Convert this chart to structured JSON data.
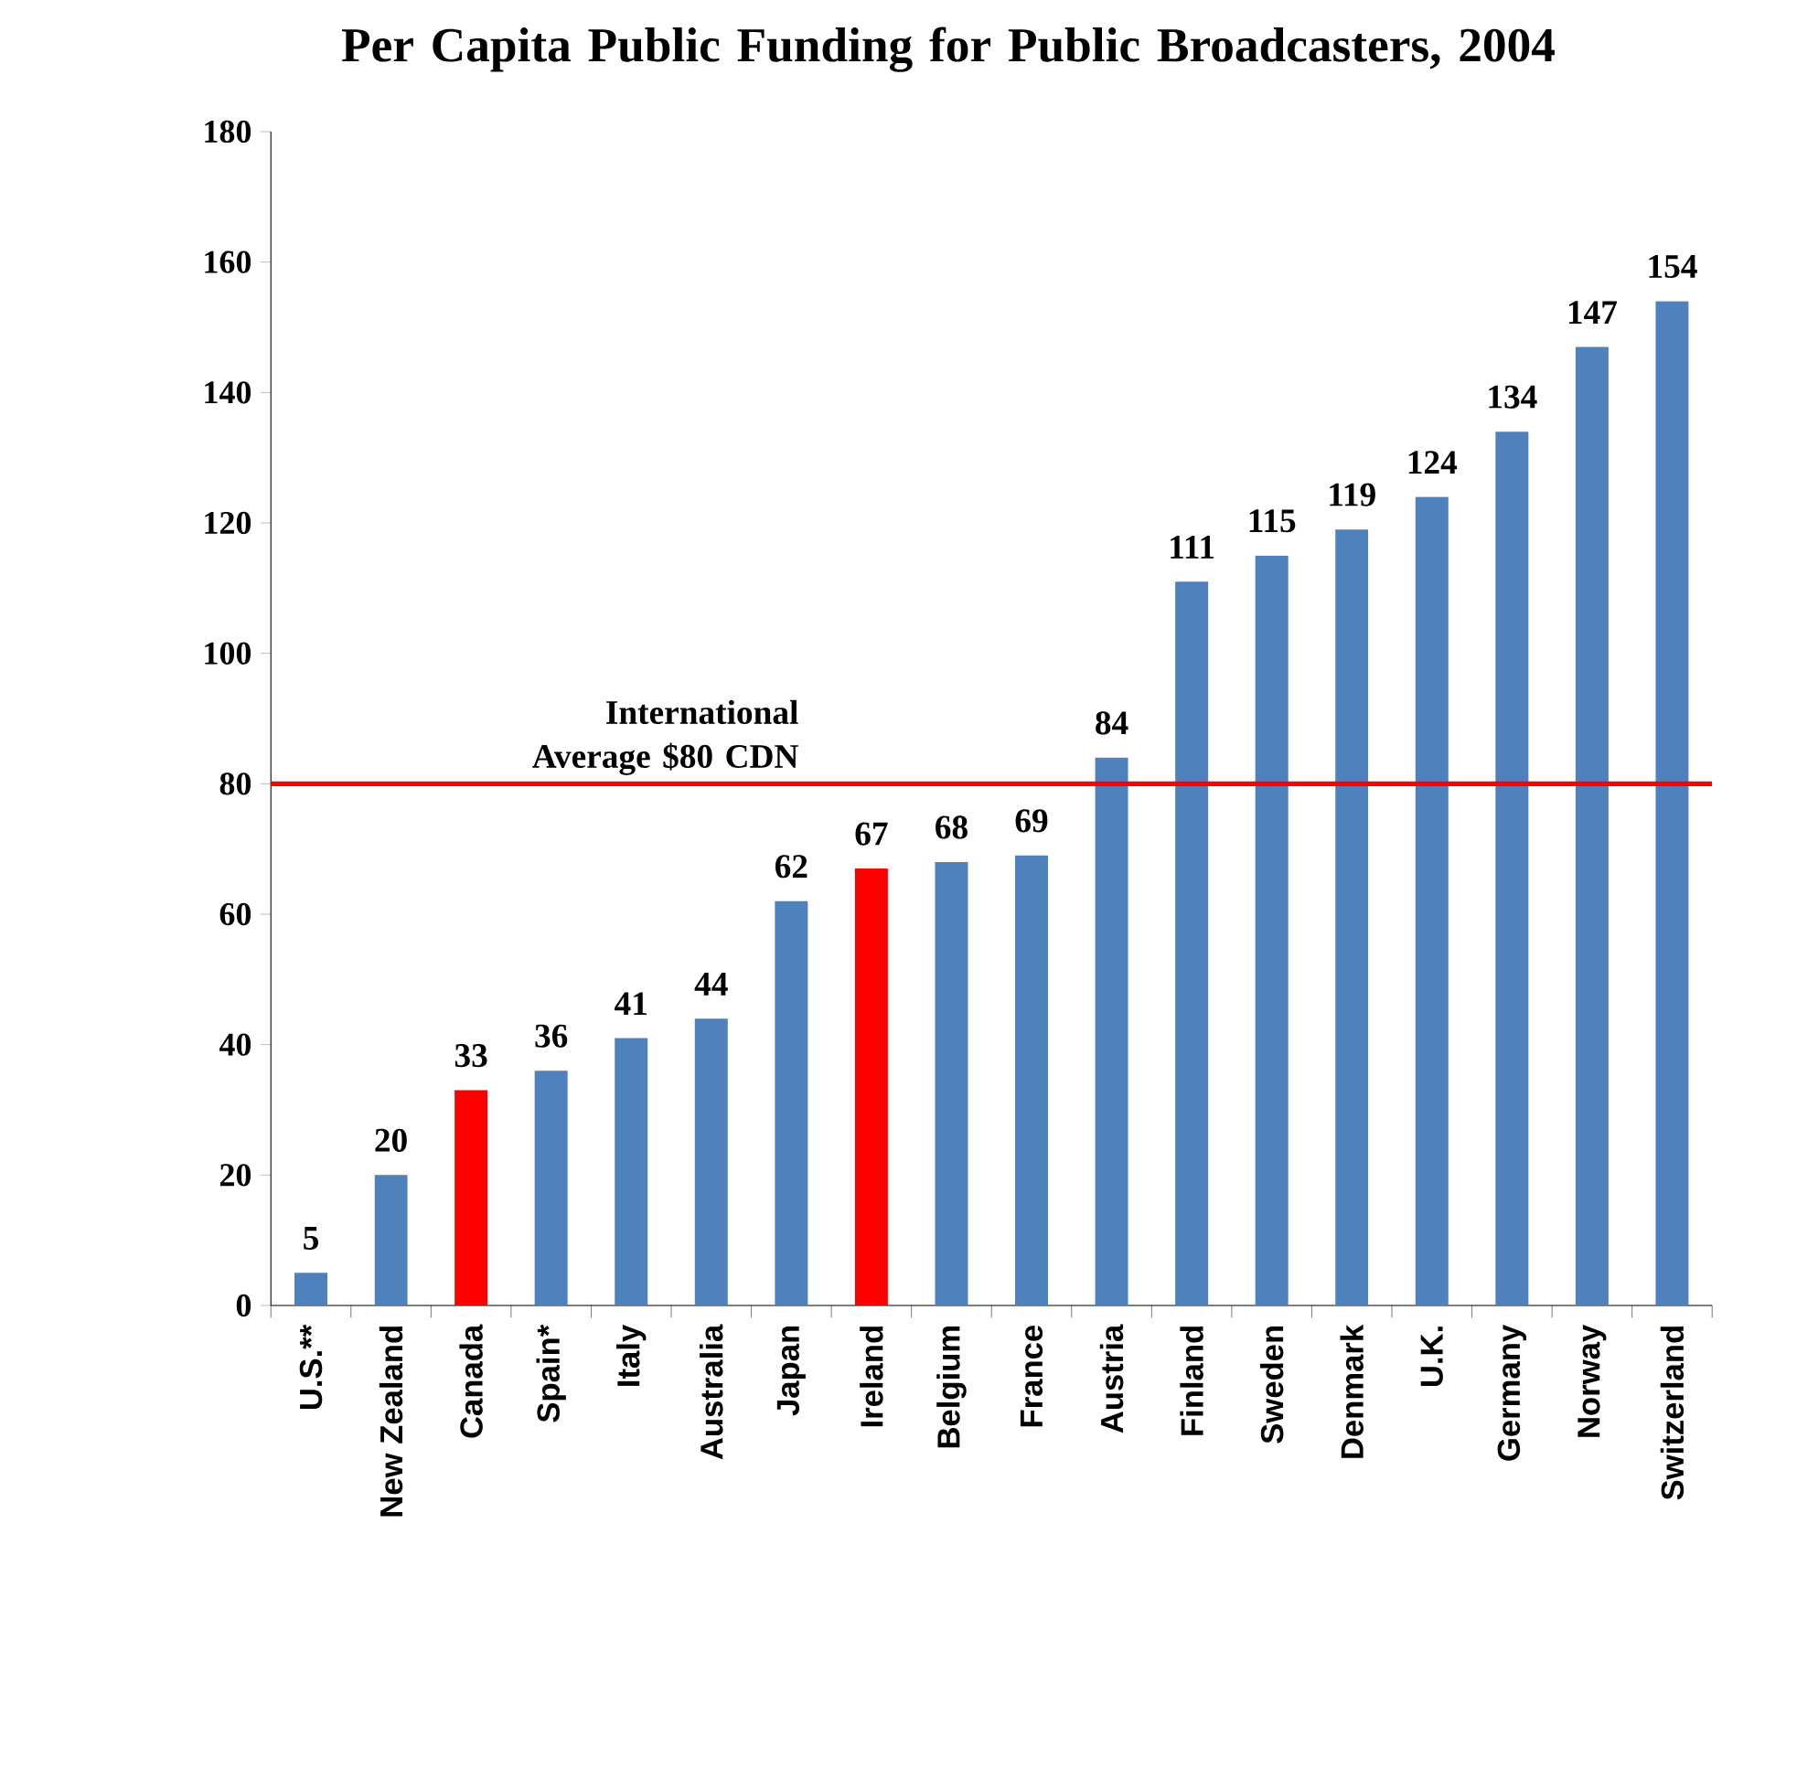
{
  "chart_data": {
    "type": "bar",
    "title": "Per Capita Public Funding for Public Broadcasters, 2004",
    "categories": [
      "U.S.**",
      "New Zealand",
      "Canada",
      "Spain*",
      "Italy",
      "Australia",
      "Japan",
      "Ireland",
      "Belgium",
      "France",
      "Austria",
      "Finland",
      "Sweden",
      "Denmark",
      "U.K.",
      "Germany",
      "Norway",
      "Switzerland"
    ],
    "values": [
      5,
      20,
      33,
      36,
      41,
      44,
      62,
      67,
      68,
      69,
      84,
      111,
      115,
      119,
      124,
      134,
      147,
      154
    ],
    "colors": [
      "#4f81bd",
      "#4f81bd",
      "#ff0000",
      "#4f81bd",
      "#4f81bd",
      "#4f81bd",
      "#4f81bd",
      "#ff0000",
      "#4f81bd",
      "#4f81bd",
      "#4f81bd",
      "#4f81bd",
      "#4f81bd",
      "#4f81bd",
      "#4f81bd",
      "#4f81bd",
      "#4f81bd",
      "#4f81bd"
    ],
    "ylim": [
      0,
      180
    ],
    "yticks": [
      0,
      20,
      40,
      60,
      80,
      100,
      120,
      140,
      160,
      180
    ],
    "data_labels": true,
    "grid": false,
    "ref_lines": [
      {
        "axis": "y",
        "value": 80,
        "label": "International Average $80 CDN",
        "color": "#ff0000"
      }
    ]
  }
}
